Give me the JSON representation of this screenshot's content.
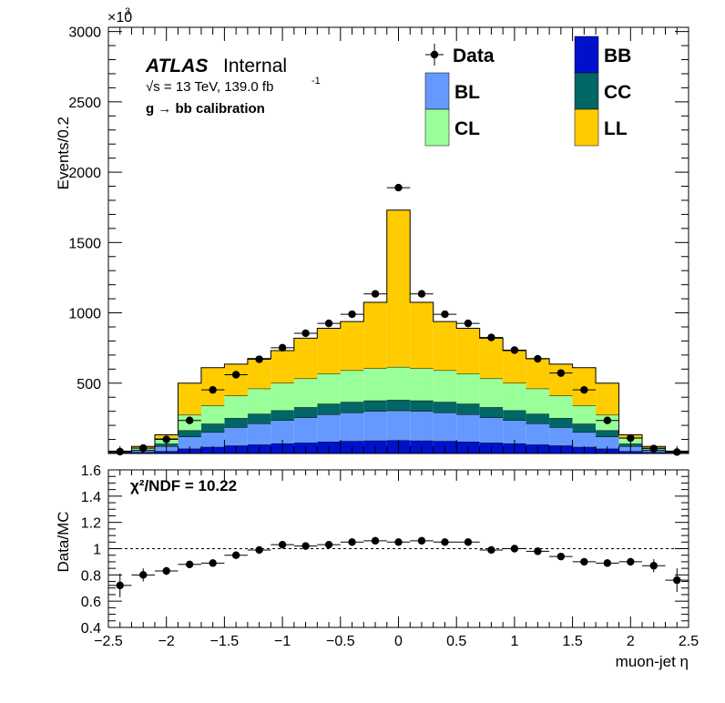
{
  "chart_data": {
    "type": "stacked-histogram-with-ratio",
    "atlas_label": "ATLAS",
    "atlas_status": "Internal",
    "energy_lumi": "√s = 13 TeV, 139.0 fb",
    "lumi_exp": "-1",
    "selection_label": "g  → bb calibration",
    "scale_factor": "×10",
    "scale_exp": "3",
    "ylabel": "Events/0.2",
    "ratio_ylabel": "Data/MC",
    "xlabel": "muon-jet η",
    "chi2_label": "χ²/NDF = 10.22",
    "xlim": [
      -2.5,
      2.5
    ],
    "ylim": [
      0,
      3030
    ],
    "ratio_ylim": [
      0.4,
      1.6
    ],
    "x_ticks": [
      "−2.5",
      "−2",
      "−1.5",
      "−1",
      "−0.5",
      "0",
      "0.5",
      "1",
      "1.5",
      "2",
      "2.5"
    ],
    "x_tick_values": [
      -2.5,
      -2,
      -1.5,
      -1,
      -0.5,
      0,
      0.5,
      1,
      1.5,
      2,
      2.5
    ],
    "y_ticks": [
      "500",
      "1000",
      "1500",
      "2000",
      "2500",
      "3000"
    ],
    "y_tick_values": [
      500,
      1000,
      1500,
      2000,
      2500,
      3000
    ],
    "ratio_ticks": [
      "0.4",
      "0.6",
      "0.8",
      "1",
      "1.2",
      "1.4",
      "1.6"
    ],
    "ratio_tick_values": [
      0.4,
      0.6,
      0.8,
      1.0,
      1.2,
      1.4,
      1.6
    ],
    "bin_edges": [
      -2.5,
      -2.3,
      -2.1,
      -1.9,
      -1.7,
      -1.5,
      -1.3,
      -1.1,
      -0.9,
      -0.7,
      -0.5,
      -0.3,
      -0.1,
      0.1,
      0.3,
      0.5,
      0.7,
      0.9,
      1.1,
      1.3,
      1.5,
      1.7,
      1.9,
      2.1,
      2.3,
      2.5
    ],
    "bin_centers": [
      -2.4,
      -2.2,
      -2.0,
      -1.8,
      -1.6,
      -1.4,
      -1.2,
      -1.0,
      -0.8,
      -0.6,
      -0.4,
      -0.2,
      0.0,
      0.2,
      0.4,
      0.6,
      0.8,
      1.0,
      1.2,
      1.4,
      1.6,
      1.8,
      2.0,
      2.2,
      2.4
    ],
    "stack_order": [
      "BB",
      "BL",
      "CC",
      "CL",
      "LL"
    ],
    "series": [
      {
        "name": "BB",
        "color": "#0011cc",
        "values": [
          3,
          8,
          15,
          33,
          45,
          55,
          62,
          70,
          75,
          82,
          87,
          90,
          92,
          90,
          87,
          82,
          75,
          70,
          62,
          55,
          45,
          33,
          15,
          8,
          3
        ]
      },
      {
        "name": "BL",
        "color": "#6699ff",
        "values": [
          4,
          12,
          35,
          85,
          105,
          130,
          150,
          165,
          180,
          195,
          203,
          210,
          212,
          210,
          203,
          195,
          180,
          165,
          150,
          130,
          105,
          85,
          35,
          12,
          4
        ]
      },
      {
        "name": "CC",
        "color": "#006666",
        "values": [
          2,
          5,
          18,
          45,
          60,
          65,
          68,
          70,
          72,
          75,
          75,
          75,
          75,
          75,
          75,
          75,
          72,
          70,
          68,
          65,
          60,
          45,
          18,
          5,
          2
        ]
      },
      {
        "name": "CL",
        "color": "#99ff99",
        "values": [
          6,
          15,
          40,
          110,
          130,
          160,
          180,
          195,
          205,
          215,
          225,
          230,
          235,
          230,
          225,
          215,
          205,
          195,
          180,
          160,
          130,
          110,
          40,
          15,
          6
        ]
      },
      {
        "name": "LL",
        "color": "#ffcc00",
        "values": [
          2,
          10,
          25,
          227,
          270,
          225,
          215,
          232,
          288,
          323,
          348,
          470,
          1116,
          470,
          348,
          323,
          288,
          232,
          215,
          225,
          270,
          227,
          25,
          10,
          2
        ]
      }
    ],
    "data": {
      "name": "Data",
      "values": [
        13,
        38,
        100,
        235,
        452,
        560,
        670,
        752,
        855,
        925,
        990,
        1135,
        1890,
        1135,
        990,
        925,
        825,
        735,
        673,
        572,
        452,
        235,
        110,
        35,
        10
      ],
      "ratio": [
        0.72,
        0.8,
        0.83,
        0.88,
        0.89,
        0.95,
        0.99,
        1.03,
        1.02,
        1.03,
        1.05,
        1.06,
        1.05,
        1.06,
        1.05,
        1.05,
        0.99,
        1.0,
        0.98,
        0.94,
        0.9,
        0.89,
        0.9,
        0.87,
        0.76
      ],
      "ratio_err": [
        0.09,
        0.05,
        0.03,
        0.02,
        0.01,
        0.01,
        0.01,
        0.01,
        0.01,
        0.01,
        0.01,
        0.01,
        0.01,
        0.01,
        0.01,
        0.01,
        0.01,
        0.01,
        0.01,
        0.01,
        0.01,
        0.02,
        0.03,
        0.05,
        0.09
      ]
    },
    "legend": [
      {
        "name": "Data",
        "kind": "marker"
      },
      {
        "name": "BB",
        "color": "#0011cc"
      },
      {
        "name": "BL",
        "color": "#6699ff"
      },
      {
        "name": "CC",
        "color": "#006666"
      },
      {
        "name": "CL",
        "color": "#99ff99"
      },
      {
        "name": "LL",
        "color": "#ffcc00"
      }
    ],
    "legend_placement": "top-right"
  }
}
